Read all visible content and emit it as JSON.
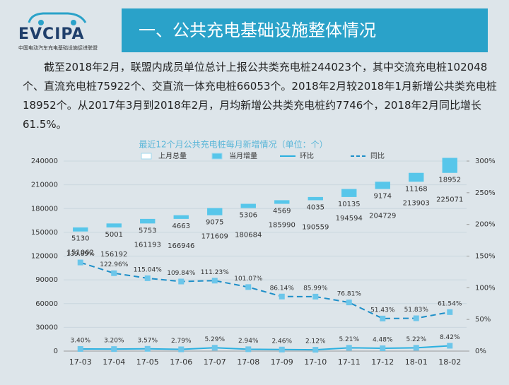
{
  "header": {
    "logo": "EVCIPA",
    "logo_subtitle": "中国电动汽车充电基础设施促进联盟",
    "title": "一、公共充电基础设施整体情况"
  },
  "paragraph": "截至2018年2月，联盟内成员单位总计上报公共类充电桩244023个，其中交流充电桩102048个、直流充电桩75922个、交直流一体充电桩66053个。2018年2月较2018年1月新增公共类充电桩18952个。从2017年3月到2018年2月，月均新增公共类充电桩约7746个，2018年2月同比增长61.5%。",
  "chart_data": {
    "type": "bar-line",
    "title": "最近12个月公共充电桩每月新增情况（单位：个）",
    "categories": [
      "17-03",
      "17-04",
      "17-05",
      "17-06",
      "17-07",
      "17-08",
      "17-09",
      "17-10",
      "17-11",
      "17-12",
      "18-01",
      "18-02"
    ],
    "series": [
      {
        "name": "上月总量",
        "type": "bar",
        "color": "transparent",
        "values": [
          151062,
          156192,
          161193,
          166946,
          171609,
          180684,
          185990,
          190559,
          194594,
          204729,
          213903,
          225071
        ]
      },
      {
        "name": "当月增量",
        "type": "bar",
        "color": "#57c6ea",
        "values": [
          5130,
          5001,
          5753,
          4663,
          9075,
          5306,
          4569,
          4035,
          10135,
          9174,
          11168,
          18952
        ]
      },
      {
        "name": "环比",
        "type": "line",
        "axis": "y2",
        "color": "#2bb0e0",
        "dashed": false,
        "values": [
          3.4,
          3.2,
          3.57,
          2.79,
          5.29,
          2.94,
          2.46,
          2.12,
          5.21,
          4.48,
          5.22,
          8.42
        ],
        "value_labels": [
          "3.40%",
          "3.20%",
          "3.57%",
          "2.79%",
          "5.29%",
          "2.94%",
          "2.46%",
          "2.12%",
          "5.21%",
          "4.48%",
          "5.22%",
          "8.42%"
        ]
      },
      {
        "name": "同比",
        "type": "line",
        "axis": "y2",
        "color": "#1e8fc8",
        "dashed": true,
        "values": [
          139.89,
          122.96,
          115.04,
          109.84,
          111.23,
          101.07,
          86.14,
          85.99,
          76.81,
          51.43,
          51.83,
          61.54
        ],
        "value_labels": [
          "139.89%",
          "122.96%",
          "115.04%",
          "109.84%",
          "111.23%",
          "101.07%",
          "86.14%",
          "85.99%",
          "76.81%",
          "51.43%",
          "51.83%",
          "61.54%"
        ]
      }
    ],
    "ylim": [
      0,
      240000
    ],
    "yticks": [
      0,
      30000,
      60000,
      90000,
      120000,
      150000,
      180000,
      210000,
      240000
    ],
    "y2lim": [
      0,
      300
    ],
    "y2ticks": [
      {
        "value": 0,
        "label": "0%"
      },
      {
        "value": 50,
        "label": "50%"
      },
      {
        "value": 100,
        "label": "100%"
      },
      {
        "value": 150,
        "label": "150%"
      },
      {
        "value": 200,
        "label": "200%"
      },
      {
        "value": 250,
        "label": "250%"
      },
      {
        "value": 300,
        "label": "300%"
      }
    ],
    "grid": true
  }
}
